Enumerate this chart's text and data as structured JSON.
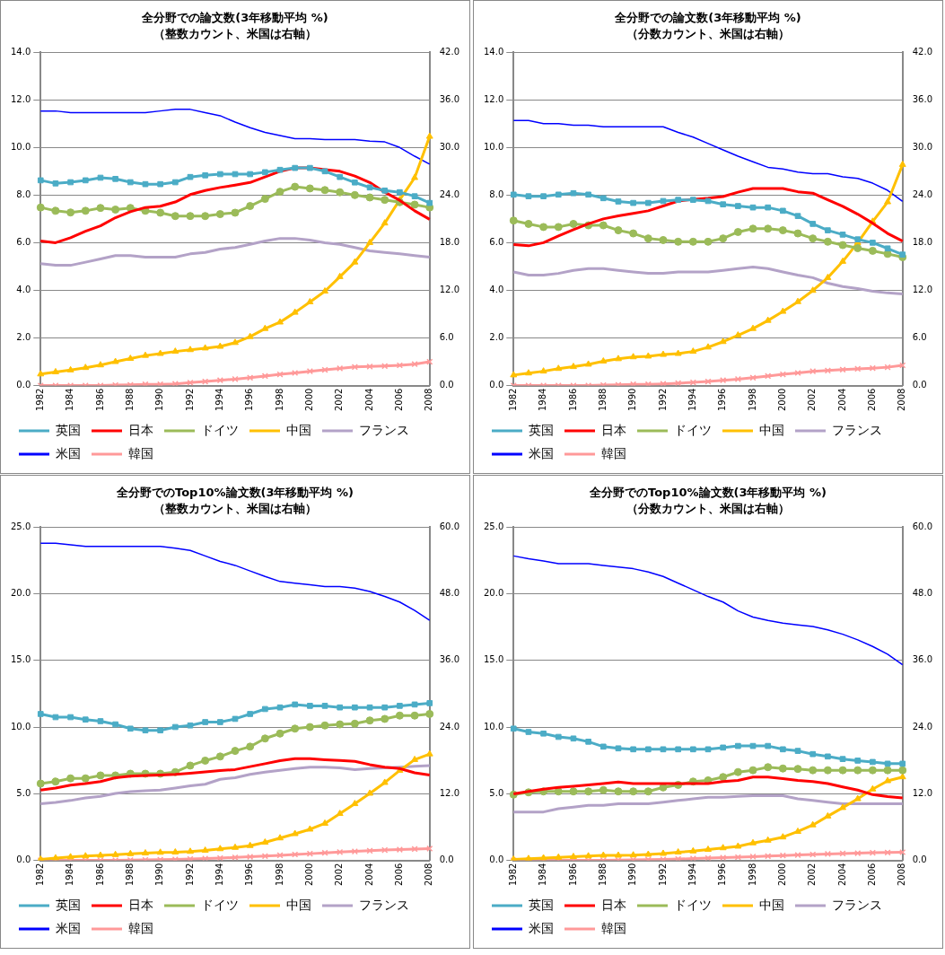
{
  "chart_data": [
    {
      "type": "line",
      "title": "全分野での論文数(3年移動平均 %)",
      "subtitle": "（整数カウント、米国は右軸）",
      "categories": [
        "1982",
        null,
        "1984",
        null,
        "1986",
        null,
        "1988",
        null,
        "1990",
        null,
        "1992",
        null,
        "1994",
        null,
        "1996",
        null,
        "1998",
        null,
        "2000",
        null,
        "2002",
        null,
        "2004",
        null,
        "2006",
        null,
        "2008"
      ],
      "series": [
        {
          "name": "英国",
          "color": "#4bacc6",
          "marker": "square",
          "values": [
            8.62,
            8.49,
            8.54,
            8.62,
            8.73,
            8.68,
            8.54,
            8.46,
            8.46,
            8.54,
            8.76,
            8.83,
            8.88,
            8.88,
            8.88,
            8.96,
            9.06,
            9.14,
            9.14,
            9.0,
            8.76,
            8.53,
            8.32,
            8.19,
            8.12,
            7.95,
            7.67
          ]
        },
        {
          "name": "日本",
          "color": "#ff0000",
          "marker": "none",
          "values": [
            6.07,
            6.0,
            6.21,
            6.48,
            6.71,
            7.05,
            7.3,
            7.48,
            7.53,
            7.71,
            8.02,
            8.19,
            8.32,
            8.42,
            8.53,
            8.76,
            9.0,
            9.14,
            9.14,
            9.07,
            9.0,
            8.8,
            8.53,
            8.12,
            7.78,
            7.34,
            6.98
          ]
        },
        {
          "name": "ドイツ",
          "color": "#9bbb59",
          "marker": "circle",
          "values": [
            7.48,
            7.34,
            7.27,
            7.34,
            7.46,
            7.39,
            7.46,
            7.34,
            7.26,
            7.12,
            7.12,
            7.12,
            7.2,
            7.26,
            7.54,
            7.84,
            8.14,
            8.35,
            8.28,
            8.21,
            8.12,
            8.0,
            7.9,
            7.8,
            7.7,
            7.6,
            7.48
          ]
        },
        {
          "name": "中国",
          "color": "#ffc000",
          "marker": "triangle",
          "values": [
            0.48,
            0.57,
            0.65,
            0.75,
            0.86,
            1.0,
            1.13,
            1.26,
            1.34,
            1.43,
            1.5,
            1.57,
            1.64,
            1.8,
            2.05,
            2.39,
            2.66,
            3.07,
            3.51,
            3.96,
            4.57,
            5.18,
            6.0,
            6.82,
            7.8,
            8.73,
            10.46
          ]
        },
        {
          "name": "フランス",
          "color": "#b3a2c7",
          "marker": "none",
          "values": [
            5.12,
            5.05,
            5.05,
            5.18,
            5.32,
            5.46,
            5.46,
            5.39,
            5.39,
            5.39,
            5.53,
            5.59,
            5.73,
            5.8,
            5.93,
            6.07,
            6.18,
            6.18,
            6.11,
            6.0,
            5.93,
            5.8,
            5.66,
            5.59,
            5.53,
            5.46,
            5.39
          ]
        },
        {
          "name": "米国",
          "color": "#0000ff",
          "marker": "none",
          "axis": "y2",
          "values": [
            34.6,
            34.6,
            34.4,
            34.4,
            34.4,
            34.4,
            34.4,
            34.4,
            34.6,
            34.8,
            34.8,
            34.4,
            34.0,
            33.2,
            32.5,
            31.9,
            31.5,
            31.1,
            31.1,
            31.0,
            31.0,
            31.0,
            30.8,
            30.7,
            30.0,
            28.9,
            27.9
          ]
        },
        {
          "name": "韓国",
          "color": "#ff9999",
          "marker": "cross",
          "values": [
            0,
            0,
            0,
            0,
            0,
            0.02,
            0.03,
            0.05,
            0.05,
            0.07,
            0.12,
            0.17,
            0.22,
            0.27,
            0.33,
            0.4,
            0.47,
            0.53,
            0.6,
            0.66,
            0.72,
            0.78,
            0.8,
            0.82,
            0.85,
            0.9,
            1.0
          ]
        }
      ],
      "ylim": [
        0,
        14
      ],
      "yticks": [
        {
          "value": 0,
          "label": "0.0"
        },
        {
          "value": 2,
          "label": "2.0"
        },
        {
          "value": 4,
          "label": "4.0"
        },
        {
          "value": 6,
          "label": "6.0"
        },
        {
          "value": 8,
          "label": "8.0"
        },
        {
          "value": 10,
          "label": "10.0"
        },
        {
          "value": 12,
          "label": "12.0"
        },
        {
          "value": 14,
          "label": "14.0"
        }
      ],
      "y2lim": [
        0,
        42
      ],
      "y2ticks": [
        {
          "value": 0,
          "label": "0.0"
        },
        {
          "value": 6,
          "label": "6.0"
        },
        {
          "value": 12,
          "label": "12.0"
        },
        {
          "value": 18,
          "label": "18.0"
        },
        {
          "value": 24,
          "label": "24.0"
        },
        {
          "value": 30,
          "label": "30.0"
        },
        {
          "value": 36,
          "label": "36.0"
        },
        {
          "value": 42,
          "label": "42.0"
        }
      ],
      "grid": "y",
      "legend": "bottom"
    },
    {
      "type": "line",
      "title": "全分野での論文数(3年移動平均 %)",
      "subtitle": "（分数カウント、米国は右軸）",
      "categories": [
        "1982",
        null,
        "1984",
        null,
        "1986",
        null,
        "1988",
        null,
        "1990",
        null,
        "1992",
        null,
        "1994",
        null,
        "1996",
        null,
        "1998",
        null,
        "2000",
        null,
        "2002",
        null,
        "2004",
        null,
        "2006",
        null,
        "2008"
      ],
      "series": [
        {
          "name": "英国",
          "color": "#4bacc6",
          "marker": "square",
          "values": [
            8.02,
            7.95,
            7.95,
            8.02,
            8.08,
            8.02,
            7.87,
            7.73,
            7.67,
            7.67,
            7.75,
            7.8,
            7.8,
            7.75,
            7.61,
            7.54,
            7.48,
            7.48,
            7.34,
            7.12,
            6.79,
            6.52,
            6.34,
            6.14,
            6.0,
            5.76,
            5.5
          ]
        },
        {
          "name": "日本",
          "color": "#ff0000",
          "marker": "none",
          "values": [
            5.92,
            5.87,
            6.0,
            6.28,
            6.55,
            6.79,
            7.0,
            7.13,
            7.23,
            7.34,
            7.54,
            7.75,
            7.82,
            7.87,
            7.94,
            8.12,
            8.28,
            8.28,
            8.28,
            8.14,
            8.08,
            7.8,
            7.53,
            7.2,
            6.82,
            6.39,
            6.07
          ]
        },
        {
          "name": "ドイツ",
          "color": "#9bbb59",
          "marker": "circle",
          "values": [
            6.93,
            6.79,
            6.66,
            6.66,
            6.79,
            6.73,
            6.73,
            6.52,
            6.39,
            6.18,
            6.11,
            6.04,
            6.04,
            6.04,
            6.18,
            6.45,
            6.59,
            6.59,
            6.52,
            6.39,
            6.18,
            6.04,
            5.9,
            5.77,
            5.66,
            5.53,
            5.39
          ]
        },
        {
          "name": "中国",
          "color": "#ffc000",
          "marker": "triangle",
          "values": [
            0.44,
            0.52,
            0.6,
            0.71,
            0.79,
            0.89,
            1.02,
            1.12,
            1.2,
            1.23,
            1.3,
            1.34,
            1.43,
            1.61,
            1.84,
            2.11,
            2.39,
            2.73,
            3.11,
            3.52,
            3.99,
            4.53,
            5.21,
            6.0,
            6.89,
            7.71,
            9.28
          ]
        },
        {
          "name": "フランス",
          "color": "#b3a2c7",
          "marker": "none",
          "values": [
            4.77,
            4.64,
            4.64,
            4.71,
            4.84,
            4.91,
            4.91,
            4.84,
            4.77,
            4.71,
            4.71,
            4.77,
            4.77,
            4.77,
            4.84,
            4.91,
            4.98,
            4.91,
            4.77,
            4.64,
            4.53,
            4.3,
            4.16,
            4.07,
            3.96,
            3.89,
            3.85
          ]
        },
        {
          "name": "米国",
          "color": "#0000ff",
          "marker": "none",
          "axis": "y2",
          "values": [
            33.4,
            33.4,
            33.0,
            33.0,
            32.8,
            32.8,
            32.6,
            32.6,
            32.6,
            32.6,
            32.6,
            31.9,
            31.3,
            30.5,
            29.7,
            28.9,
            28.2,
            27.5,
            27.3,
            26.9,
            26.7,
            26.7,
            26.3,
            26.1,
            25.5,
            24.6,
            23.2
          ]
        },
        {
          "name": "韓国",
          "color": "#ff9999",
          "marker": "cross",
          "values": [
            0,
            0,
            0,
            0,
            0,
            0,
            0.02,
            0.03,
            0.05,
            0.05,
            0.07,
            0.1,
            0.13,
            0.17,
            0.22,
            0.27,
            0.33,
            0.4,
            0.47,
            0.53,
            0.6,
            0.63,
            0.67,
            0.7,
            0.73,
            0.77,
            0.85
          ]
        }
      ],
      "ylim": [
        0,
        14
      ],
      "yticks": [
        {
          "value": 0,
          "label": "0.0"
        },
        {
          "value": 2,
          "label": "2.0"
        },
        {
          "value": 4,
          "label": "4.0"
        },
        {
          "value": 6,
          "label": "6.0"
        },
        {
          "value": 8,
          "label": "8.0"
        },
        {
          "value": 10,
          "label": "10.0"
        },
        {
          "value": 12,
          "label": "12.0"
        },
        {
          "value": 14,
          "label": "14.0"
        }
      ],
      "y2lim": [
        0,
        42
      ],
      "y2ticks": [
        {
          "value": 0,
          "label": "0.0"
        },
        {
          "value": 6,
          "label": "6.0"
        },
        {
          "value": 12,
          "label": "12.0"
        },
        {
          "value": 18,
          "label": "18.0"
        },
        {
          "value": 24,
          "label": "24.0"
        },
        {
          "value": 30,
          "label": "30.0"
        },
        {
          "value": 36,
          "label": "36.0"
        },
        {
          "value": 42,
          "label": "42.0"
        }
      ],
      "grid": "y",
      "legend": "bottom"
    },
    {
      "type": "line",
      "title": "全分野でのTop10%論文数(3年移動平均 %)",
      "subtitle": "（整数カウント、米国は右軸）",
      "categories": [
        "1982",
        null,
        "1984",
        null,
        "1986",
        null,
        "1988",
        null,
        "1990",
        null,
        "1992",
        null,
        "1994",
        null,
        "1996",
        null,
        "1998",
        null,
        "2000",
        null,
        "2002",
        null,
        "2004",
        null,
        "2006",
        null,
        "2008"
      ],
      "series": [
        {
          "name": "英国",
          "color": "#4bacc6",
          "marker": "square",
          "values": [
            10.98,
            10.74,
            10.74,
            10.56,
            10.44,
            10.2,
            9.88,
            9.75,
            9.75,
            10.0,
            10.12,
            10.37,
            10.37,
            10.61,
            10.98,
            11.35,
            11.47,
            11.69,
            11.59,
            11.59,
            11.47,
            11.47,
            11.47,
            11.47,
            11.59,
            11.69,
            11.79
          ]
        },
        {
          "name": "日本",
          "color": "#ff0000",
          "marker": "none",
          "values": [
            5.27,
            5.42,
            5.64,
            5.76,
            5.91,
            6.2,
            6.32,
            6.37,
            6.4,
            6.45,
            6.54,
            6.64,
            6.74,
            6.81,
            7.03,
            7.25,
            7.48,
            7.62,
            7.62,
            7.55,
            7.5,
            7.43,
            7.18,
            6.99,
            6.89,
            6.57,
            6.4
          ]
        },
        {
          "name": "ドイツ",
          "color": "#9bbb59",
          "marker": "circle",
          "values": [
            5.76,
            5.91,
            6.15,
            6.15,
            6.37,
            6.37,
            6.5,
            6.5,
            6.5,
            6.62,
            7.11,
            7.48,
            7.79,
            8.21,
            8.53,
            9.14,
            9.51,
            9.88,
            10.0,
            10.12,
            10.2,
            10.25,
            10.49,
            10.61,
            10.86,
            10.86,
            10.98
          ]
        },
        {
          "name": "中国",
          "color": "#ffc000",
          "marker": "triangle",
          "values": [
            0.07,
            0.17,
            0.25,
            0.32,
            0.37,
            0.42,
            0.49,
            0.54,
            0.59,
            0.61,
            0.66,
            0.74,
            0.86,
            0.96,
            1.1,
            1.35,
            1.67,
            1.99,
            2.33,
            2.77,
            3.5,
            4.24,
            5.02,
            5.83,
            6.74,
            7.55,
            7.97
          ]
        },
        {
          "name": "フランス",
          "color": "#b3a2c7",
          "marker": "none",
          "values": [
            4.24,
            4.34,
            4.49,
            4.68,
            4.8,
            5.02,
            5.15,
            5.22,
            5.27,
            5.42,
            5.59,
            5.71,
            6.08,
            6.2,
            6.45,
            6.62,
            6.76,
            6.89,
            6.99,
            6.99,
            6.94,
            6.81,
            6.89,
            6.94,
            6.99,
            7.06,
            7.11
          ]
        },
        {
          "name": "米国",
          "color": "#0000ff",
          "marker": "none",
          "axis": "y2",
          "values": [
            57.1,
            57.1,
            56.8,
            56.5,
            56.5,
            56.5,
            56.5,
            56.5,
            56.5,
            56.2,
            55.8,
            54.8,
            53.8,
            53.1,
            52.1,
            51.1,
            50.2,
            49.9,
            49.6,
            49.3,
            49.3,
            49.0,
            48.4,
            47.5,
            46.5,
            45.0,
            43.2
          ]
        },
        {
          "name": "韓国",
          "color": "#ff9999",
          "marker": "cross",
          "values": [
            0,
            0,
            0,
            0,
            0,
            0,
            0.02,
            0.03,
            0.05,
            0.07,
            0.1,
            0.13,
            0.17,
            0.22,
            0.27,
            0.32,
            0.38,
            0.44,
            0.5,
            0.56,
            0.62,
            0.67,
            0.72,
            0.77,
            0.81,
            0.85,
            0.88
          ]
        }
      ],
      "ylim": [
        0,
        25
      ],
      "yticks": [
        {
          "value": 0,
          "label": "0.0"
        },
        {
          "value": 5,
          "label": "5.0"
        },
        {
          "value": 10,
          "label": "10.0"
        },
        {
          "value": 15,
          "label": "15.0"
        },
        {
          "value": 20,
          "label": "20.0"
        },
        {
          "value": 25,
          "label": "25.0"
        }
      ],
      "y2lim": [
        0,
        60
      ],
      "y2ticks": [
        {
          "value": 0,
          "label": "0.0"
        },
        {
          "value": 12,
          "label": "12.0"
        },
        {
          "value": 24,
          "label": "24.0"
        },
        {
          "value": 36,
          "label": "36.0"
        },
        {
          "value": 48,
          "label": "48.0"
        },
        {
          "value": 60,
          "label": "60.0"
        }
      ],
      "grid": "y",
      "legend": "bottom"
    },
    {
      "type": "line",
      "title": "全分野でのTop10%論文数(3年移動平均 %)",
      "subtitle": "（分数カウント、米国は右軸）",
      "categories": [
        "1982",
        null,
        "1984",
        null,
        "1986",
        null,
        "1988",
        null,
        "1990",
        null,
        "1992",
        null,
        "1994",
        null,
        "1996",
        null,
        "1998",
        null,
        "2000",
        null,
        "2002",
        null,
        "2004",
        null,
        "2006",
        null,
        "2008"
      ],
      "series": [
        {
          "name": "英国",
          "color": "#4bacc6",
          "marker": "square",
          "values": [
            9.88,
            9.63,
            9.51,
            9.26,
            9.14,
            8.9,
            8.53,
            8.4,
            8.33,
            8.33,
            8.33,
            8.33,
            8.33,
            8.33,
            8.46,
            8.58,
            8.58,
            8.58,
            8.33,
            8.21,
            7.97,
            7.79,
            7.6,
            7.48,
            7.38,
            7.25,
            7.25
          ]
        },
        {
          "name": "日本",
          "color": "#ff0000",
          "marker": "none",
          "values": [
            4.98,
            5.17,
            5.34,
            5.47,
            5.56,
            5.66,
            5.76,
            5.88,
            5.76,
            5.76,
            5.76,
            5.76,
            5.76,
            5.76,
            5.91,
            6.0,
            6.25,
            6.25,
            6.13,
            6.0,
            5.91,
            5.76,
            5.51,
            5.27,
            4.93,
            4.78,
            4.68
          ]
        },
        {
          "name": "ドイツ",
          "color": "#9bbb59",
          "marker": "circle",
          "values": [
            4.93,
            5.1,
            5.17,
            5.17,
            5.17,
            5.17,
            5.27,
            5.17,
            5.17,
            5.17,
            5.47,
            5.66,
            5.91,
            6.0,
            6.25,
            6.62,
            6.76,
            6.99,
            6.89,
            6.86,
            6.76,
            6.76,
            6.76,
            6.76,
            6.76,
            6.76,
            6.76
          ]
        },
        {
          "name": "中国",
          "color": "#ffc000",
          "marker": "triangle",
          "values": [
            0.07,
            0.12,
            0.17,
            0.22,
            0.27,
            0.32,
            0.37,
            0.37,
            0.39,
            0.44,
            0.51,
            0.61,
            0.69,
            0.81,
            0.93,
            1.05,
            1.3,
            1.5,
            1.74,
            2.16,
            2.65,
            3.31,
            3.95,
            4.61,
            5.34,
            5.96,
            6.25
          ]
        },
        {
          "name": "フランス",
          "color": "#b3a2c7",
          "marker": "none",
          "values": [
            3.63,
            3.63,
            3.63,
            3.87,
            4.0,
            4.12,
            4.12,
            4.24,
            4.24,
            4.24,
            4.36,
            4.49,
            4.61,
            4.73,
            4.73,
            4.8,
            4.85,
            4.85,
            4.85,
            4.61,
            4.49,
            4.36,
            4.24,
            4.24,
            4.24,
            4.24,
            4.24
          ]
        },
        {
          "name": "米国",
          "color": "#0000ff",
          "marker": "none",
          "axis": "y2",
          "values": [
            54.8,
            54.3,
            53.9,
            53.4,
            53.4,
            53.4,
            53.1,
            52.8,
            52.5,
            51.9,
            51.1,
            49.9,
            48.7,
            47.5,
            46.5,
            44.9,
            43.8,
            43.2,
            42.7,
            42.4,
            42.1,
            41.5,
            40.7,
            39.7,
            38.5,
            37.1,
            35.2
          ]
        },
        {
          "name": "韓国",
          "color": "#ff9999",
          "marker": "cross",
          "values": [
            0,
            0,
            0,
            0,
            0,
            0,
            0,
            0.02,
            0.03,
            0.05,
            0.07,
            0.1,
            0.13,
            0.17,
            0.2,
            0.24,
            0.28,
            0.32,
            0.36,
            0.4,
            0.44,
            0.48,
            0.51,
            0.54,
            0.57,
            0.59,
            0.61
          ]
        }
      ],
      "ylim": [
        0,
        25
      ],
      "yticks": [
        {
          "value": 0,
          "label": "0.0"
        },
        {
          "value": 5,
          "label": "5.0"
        },
        {
          "value": 10,
          "label": "10.0"
        },
        {
          "value": 15,
          "label": "15.0"
        },
        {
          "value": 20,
          "label": "20.0"
        },
        {
          "value": 25,
          "label": "25.0"
        }
      ],
      "y2lim": [
        0,
        60
      ],
      "y2ticks": [
        {
          "value": 0,
          "label": "0.0"
        },
        {
          "value": 12,
          "label": "12.0"
        },
        {
          "value": 24,
          "label": "24.0"
        },
        {
          "value": 36,
          "label": "36.0"
        },
        {
          "value": 48,
          "label": "48.0"
        },
        {
          "value": 60,
          "label": "60.0"
        }
      ],
      "grid": "y",
      "legend": "bottom"
    }
  ]
}
